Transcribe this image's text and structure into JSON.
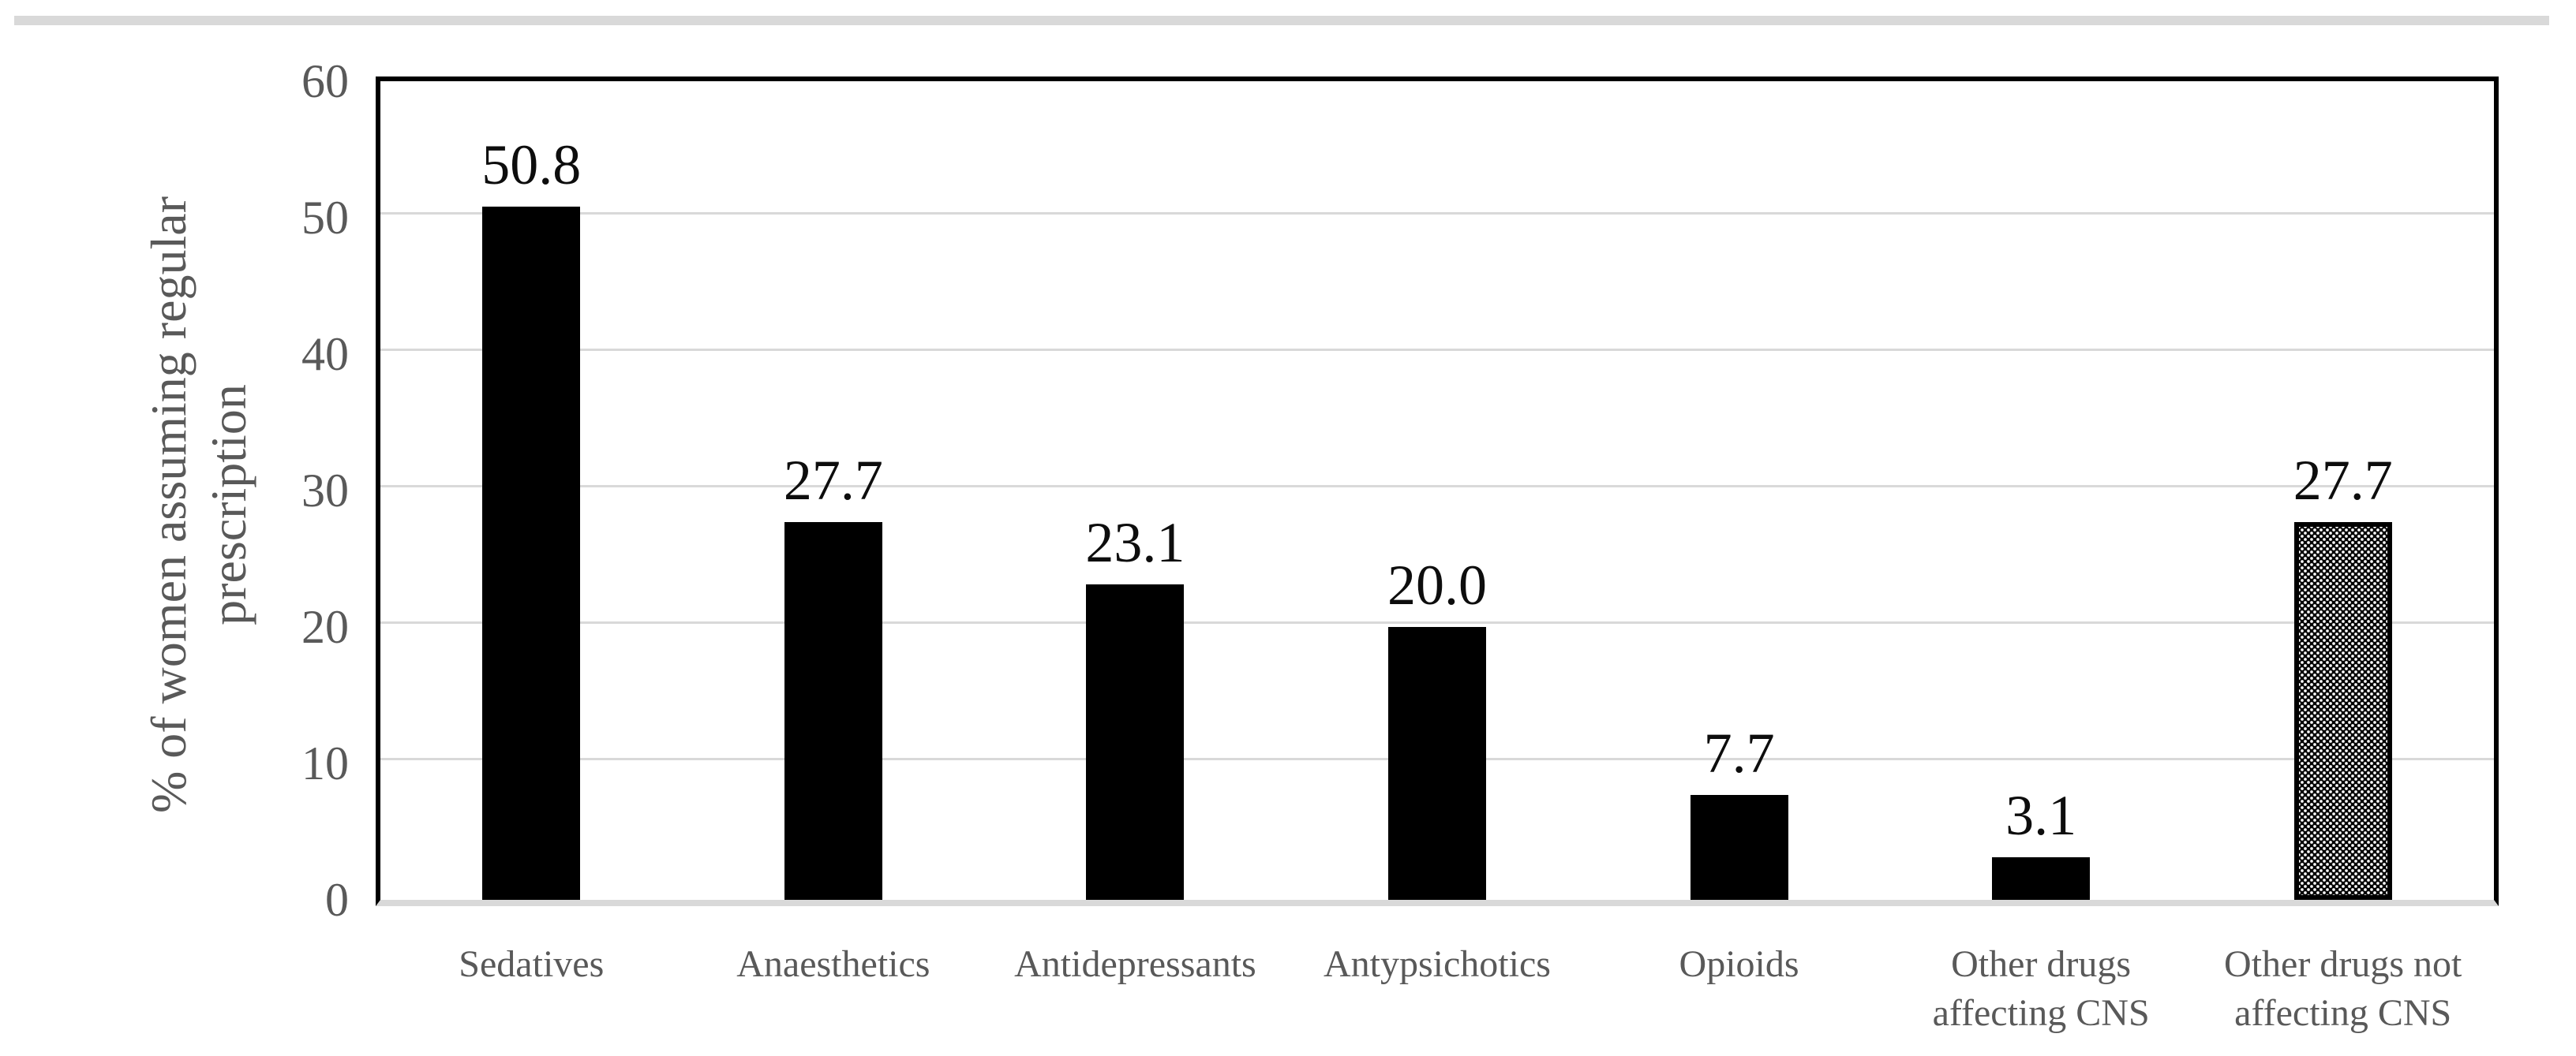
{
  "chart_data": {
    "type": "bar",
    "categories": [
      "Sedatives",
      "Anaesthetics",
      "Antidepressants",
      "Antypsichotics",
      "Opioids",
      "Other drugs affecting CNS",
      "Other drugs not affecting CNS"
    ],
    "values": [
      50.8,
      27.7,
      23.1,
      20.0,
      7.7,
      3.1,
      27.7
    ],
    "value_labels": [
      "50.8",
      "27.7",
      "23.1",
      "20.0",
      "7.7",
      "3.1",
      "27.7"
    ],
    "bar_styles": [
      "solid",
      "solid",
      "solid",
      "solid",
      "solid",
      "solid",
      "pattern-dotted"
    ],
    "title": "",
    "xlabel": "",
    "ylabel": "% of women assuming regular prescription",
    "ylabel_lines": [
      "% of women assuming regular",
      "prescription"
    ],
    "ylim": [
      0,
      60
    ],
    "yticks": [
      0,
      10,
      20,
      30,
      40,
      50,
      60
    ],
    "grid": true,
    "legend": false,
    "colors": {
      "bar_fill": "#000000",
      "pattern_dot": "#ffffff",
      "grid_line": "#d9d9d9",
      "axis_text": "#595959",
      "data_label": "#0d0d0d",
      "plot_border": "#000000",
      "baseline": "#d9d9d9",
      "top_band": "#d9d9d9",
      "background": "#ffffff"
    }
  }
}
